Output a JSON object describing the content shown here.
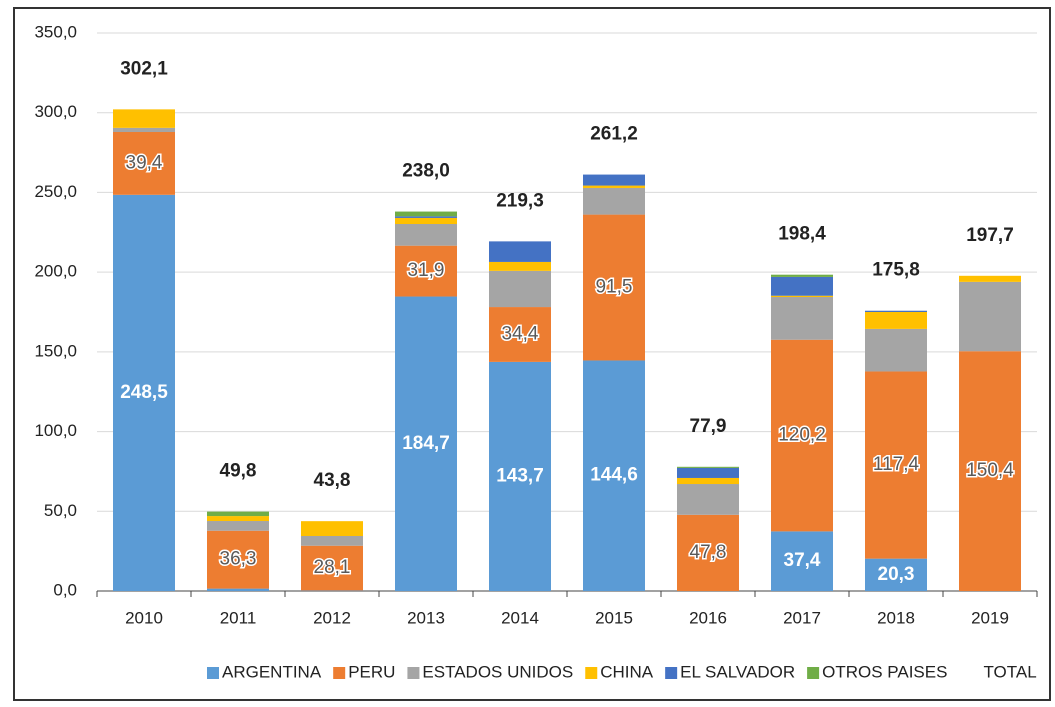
{
  "chart_data": {
    "type": "stacked_bar",
    "categories": [
      "2010",
      "2011",
      "2012",
      "2013",
      "2014",
      "2015",
      "2016",
      "2017",
      "2018",
      "2019"
    ],
    "series": [
      {
        "name": "ARGENTINA",
        "color": "#5b9bd5",
        "values": [
          248.5,
          1.5,
          0.3,
          184.7,
          143.7,
          144.6,
          0,
          37.4,
          20.3,
          0
        ],
        "value_labels": [
          "248,5",
          null,
          null,
          "184,7",
          "143,7",
          "144,6",
          null,
          "37,4",
          "20,3",
          null
        ]
      },
      {
        "name": "PERU",
        "color": "#ed7d31",
        "values": [
          39.4,
          36.3,
          28.1,
          31.9,
          34.4,
          91.5,
          47.8,
          120.2,
          117.4,
          150.4
        ],
        "value_labels": [
          "39,4",
          "36,3",
          "28,1",
          "31,9",
          "34,4",
          "91,5",
          "47,8",
          "120,2",
          "117,4",
          "150,4"
        ]
      },
      {
        "name": "ESTADOS UNIDOS",
        "color": "#a5a5a5",
        "values": [
          2.6,
          6.1,
          6.1,
          13.6,
          22.7,
          16.7,
          19.3,
          26.8,
          26.7,
          43.5
        ]
      },
      {
        "name": "CHINA",
        "color": "#ffc000",
        "values": [
          11.6,
          3.1,
          9.3,
          3.8,
          5.6,
          1.5,
          3.8,
          0.8,
          10.6,
          3.8
        ]
      },
      {
        "name": "EL SALVADOR",
        "color": "#4472c4",
        "values": [
          0,
          0,
          0,
          1.0,
          12.9,
          6.9,
          6.3,
          11.8,
          0.8,
          0
        ]
      },
      {
        "name": "OTROS PAISES",
        "color": "#70ad47",
        "values": [
          0,
          2.8,
          0,
          3.0,
          0,
          0,
          0.7,
          1.4,
          0,
          0
        ]
      }
    ],
    "total": {
      "name": "TOTAL",
      "color": "#c55a11",
      "values": [
        302.1,
        49.8,
        43.8,
        238.0,
        219.3,
        261.2,
        77.9,
        198.4,
        175.8,
        197.7
      ],
      "value_labels": [
        "302,1",
        "49,8",
        "43,8",
        "238,0",
        "219,3",
        "261,2",
        "77,9",
        "198,4",
        "175,8",
        "197,7"
      ]
    },
    "ylim": [
      0,
      350
    ],
    "yticks": [
      {
        "value": 0,
        "label": "0,0"
      },
      {
        "value": 50,
        "label": "50,0"
      },
      {
        "value": 100,
        "label": "100,0"
      },
      {
        "value": 150,
        "label": "150,0"
      },
      {
        "value": 200,
        "label": "200,0"
      },
      {
        "value": 250,
        "label": "250,0"
      },
      {
        "value": 300,
        "label": "300,0"
      },
      {
        "value": 350,
        "label": "350,0"
      }
    ],
    "grid": true,
    "legend": "bottom"
  }
}
